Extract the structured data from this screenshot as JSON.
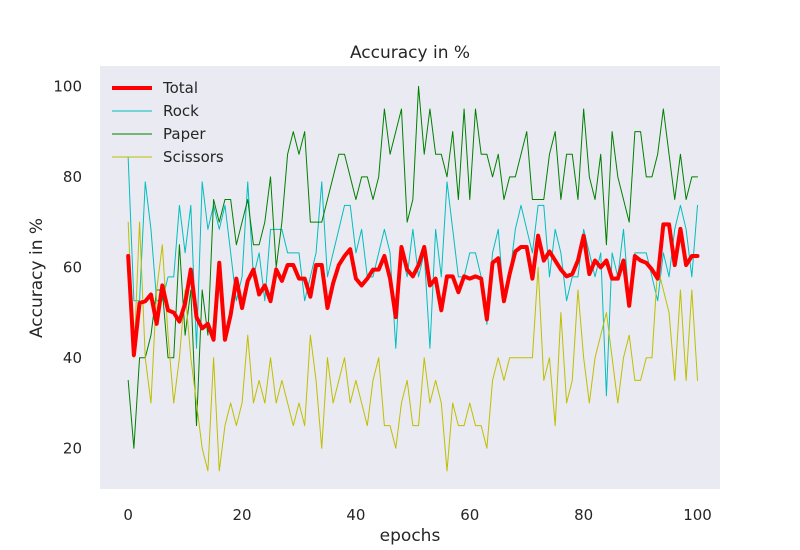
{
  "chart_data": {
    "type": "line",
    "title": "Accuracy in %",
    "xlabel": "epochs",
    "ylabel": "Accuracy in %",
    "xlim": [
      -4.95,
      103.95
    ],
    "ylim": [
      11.0,
      104.5
    ],
    "xticks": [
      0,
      20,
      40,
      60,
      80,
      100
    ],
    "yticks": [
      20,
      40,
      60,
      80,
      100
    ],
    "grid": false,
    "legend_position": "top-left",
    "background_color": "#eaeaf2",
    "series": [
      {
        "name": "Total",
        "color": "#ff0000",
        "linewidth": 4,
        "values": [
          62.5,
          40.6,
          52.1,
          52.5,
          54.0,
          47.5,
          56.0,
          50.5,
          50.0,
          48.0,
          52.0,
          59.5,
          49.0,
          46.5,
          47.5,
          44.0,
          61.0,
          44.0,
          49.5,
          57.5,
          51.0,
          57.0,
          59.5,
          54.0,
          56.0,
          52.5,
          59.5,
          57.0,
          60.5,
          60.5,
          57.5,
          57.5,
          53.5,
          60.5,
          60.5,
          51.0,
          56.5,
          60.5,
          62.5,
          64.0,
          57.5,
          56.0,
          57.5,
          59.5,
          59.5,
          62.5,
          57.5,
          49.0,
          64.5,
          59.5,
          58.0,
          60.5,
          64.5,
          56.0,
          57.5,
          50.5,
          58.0,
          58.0,
          54.5,
          58.0,
          57.5,
          58.0,
          57.5,
          48.5,
          61.0,
          62.0,
          52.5,
          58.5,
          63.5,
          64.5,
          64.5,
          57.5,
          67.0,
          61.5,
          63.5,
          61.5,
          59.5,
          58.0,
          58.5,
          61.5,
          67.0,
          58.5,
          61.5,
          60.0,
          61.5,
          57.5,
          57.5,
          61.5,
          51.5,
          62.5,
          61.5,
          61.0,
          59.5,
          57.5,
          69.5,
          69.5,
          60.5,
          68.5,
          60.5,
          62.5,
          62.5
        ]
      },
      {
        "name": "Rock",
        "color": "#00bfbf",
        "linewidth": 1,
        "values": [
          84.2,
          52.6,
          52.6,
          78.9,
          68.4,
          52.6,
          52.6,
          57.9,
          57.9,
          73.7,
          63.2,
          73.7,
          42.1,
          78.9,
          68.4,
          73.7,
          68.4,
          73.7,
          63.2,
          52.6,
          57.9,
          78.9,
          57.9,
          63.2,
          52.6,
          68.4,
          68.4,
          68.4,
          63.2,
          63.2,
          63.2,
          52.6,
          57.9,
          63.2,
          78.9,
          57.9,
          63.2,
          68.4,
          73.7,
          73.7,
          63.2,
          68.4,
          57.9,
          57.9,
          63.2,
          68.4,
          63.2,
          42.1,
          63.2,
          57.9,
          68.4,
          57.9,
          63.2,
          42.1,
          68.4,
          57.9,
          78.9,
          68.4,
          57.9,
          57.9,
          63.2,
          63.2,
          57.9,
          47.4,
          63.2,
          68.4,
          52.6,
          57.9,
          68.4,
          73.7,
          68.4,
          63.2,
          73.7,
          73.7,
          57.9,
          68.4,
          63.2,
          52.6,
          57.9,
          57.9,
          68.4,
          63.2,
          57.9,
          63.2,
          31.6,
          63.2,
          57.9,
          68.4,
          52.6,
          63.2,
          63.2,
          63.2,
          57.9,
          52.6,
          63.2,
          57.9,
          68.4,
          73.7,
          68.4,
          57.9,
          73.7
        ]
      },
      {
        "name": "Paper",
        "color": "#008000",
        "linewidth": 1,
        "values": [
          35,
          20,
          40,
          40,
          45,
          55,
          55,
          40,
          40,
          65,
          45,
          55,
          25,
          55,
          45,
          75,
          70,
          75,
          75,
          65,
          70,
          75,
          65,
          65,
          70,
          80,
          60,
          70,
          85,
          90,
          85,
          90,
          70,
          70,
          70,
          75,
          80,
          85,
          85,
          80,
          75,
          80,
          80,
          75,
          80,
          95,
          85,
          90,
          95,
          70,
          75,
          100,
          85,
          95,
          85,
          85,
          80,
          90,
          75,
          95,
          75,
          95,
          85,
          85,
          80,
          85,
          75,
          80,
          80,
          85,
          90,
          75,
          75,
          75,
          85,
          90,
          75,
          85,
          85,
          75,
          95,
          80,
          75,
          85,
          65,
          90,
          80,
          75,
          70,
          90,
          90,
          80,
          80,
          85,
          95,
          85,
          75,
          85,
          75,
          80,
          80
        ]
      },
      {
        "name": "Scissors",
        "color": "#bfbf00",
        "linewidth": 1,
        "values": [
          70,
          40,
          70,
          40,
          30,
          55,
          65,
          45,
          30,
          40,
          55,
          40,
          30,
          20,
          15,
          40,
          15,
          25,
          30,
          25,
          30,
          45,
          30,
          35,
          30,
          40,
          30,
          35,
          30,
          25,
          30,
          25,
          45,
          35,
          20,
          40,
          30,
          35,
          40,
          30,
          35,
          30,
          25,
          35,
          40,
          25,
          25,
          20,
          30,
          35,
          25,
          25,
          40,
          30,
          35,
          30,
          15,
          30,
          25,
          25,
          30,
          25,
          25,
          20,
          35,
          40,
          35,
          40,
          40,
          40,
          40,
          40,
          60,
          35,
          40,
          25,
          50,
          30,
          35,
          55,
          40,
          30,
          40,
          45,
          50,
          40,
          30,
          40,
          45,
          35,
          35,
          40,
          40,
          60,
          55,
          50,
          35,
          55,
          35,
          55,
          35
        ]
      }
    ]
  }
}
